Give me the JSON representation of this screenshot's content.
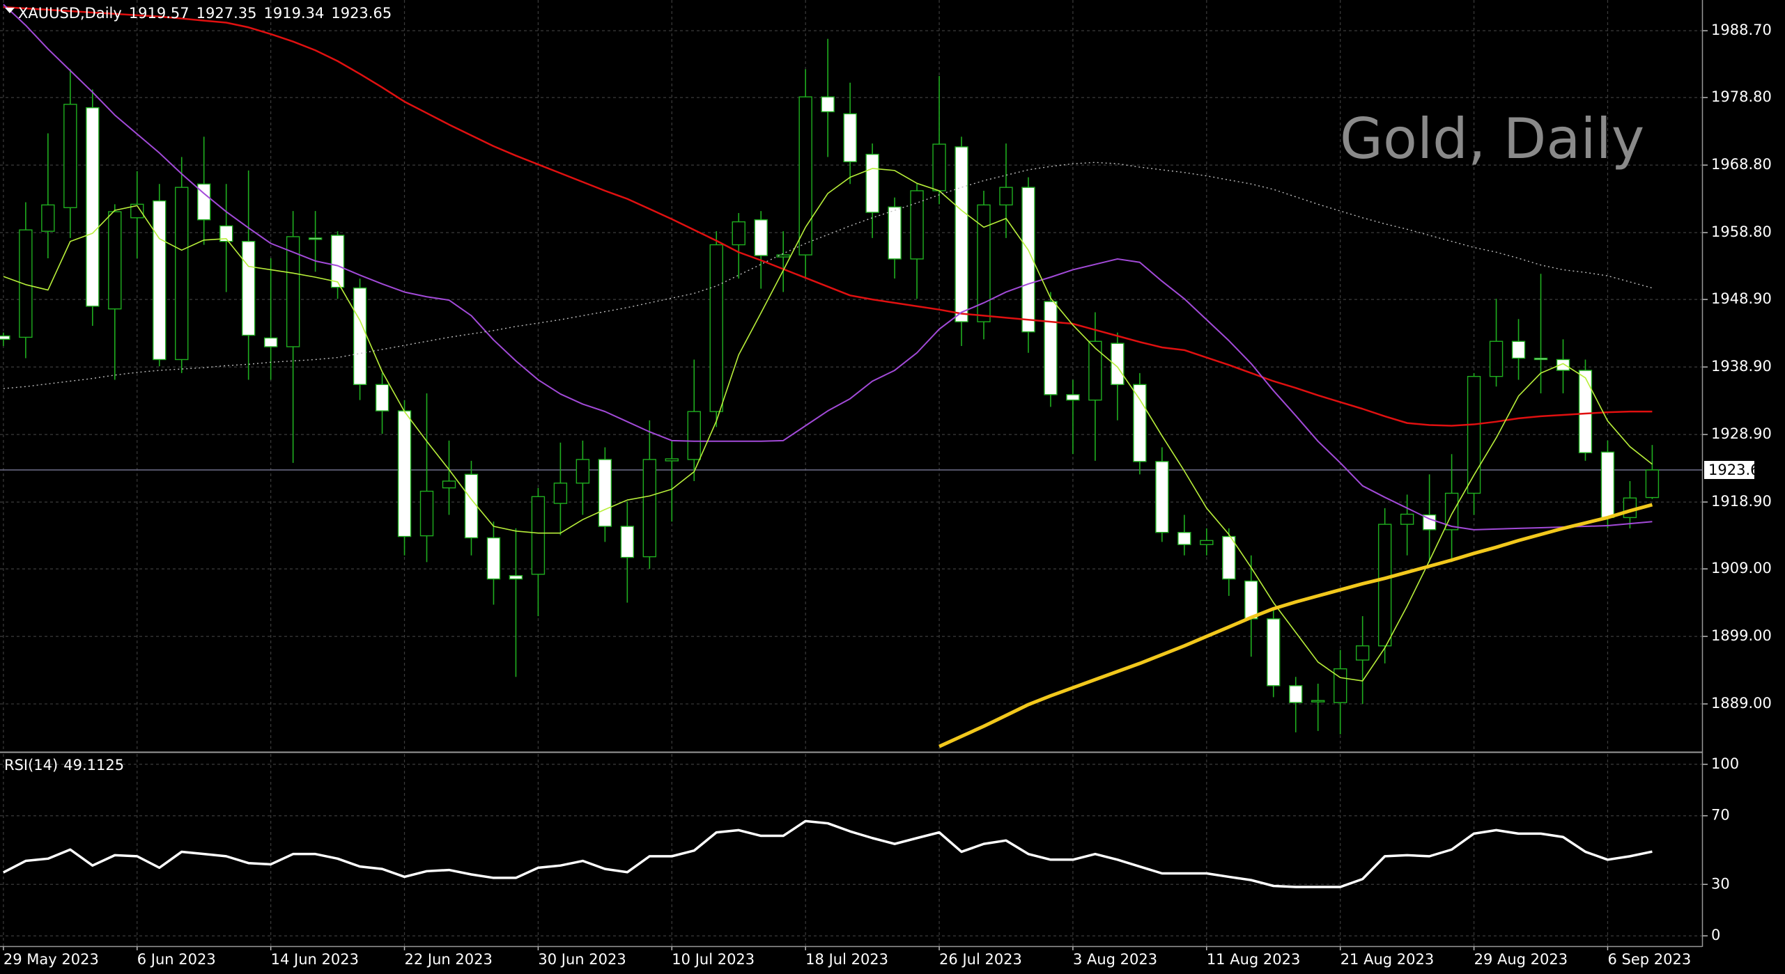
{
  "chart_data": [
    {
      "type": "candlestick",
      "symbol": "XAUUSD,Daily",
      "watermark": "Gold, Daily",
      "categories": [
        "29 May 2023",
        null,
        null,
        null,
        null,
        null,
        "6 Jun 2023",
        null,
        null,
        null,
        null,
        null,
        "14 Jun 2023",
        null,
        null,
        null,
        null,
        null,
        "22 Jun 2023",
        null,
        null,
        null,
        null,
        null,
        "30 Jun 2023",
        null,
        null,
        null,
        null,
        null,
        "10 Jul 2023",
        null,
        null,
        null,
        null,
        null,
        "18 Jul 2023",
        null,
        null,
        null,
        null,
        null,
        "26 Jul 2023",
        null,
        null,
        null,
        null,
        null,
        "3 Aug 2023",
        null,
        null,
        null,
        null,
        null,
        "11 Aug 2023",
        null,
        null,
        null,
        null,
        null,
        "21 Aug 2023",
        null,
        null,
        null,
        null,
        null,
        "29 Aug 2023",
        null,
        null,
        null,
        null,
        null,
        "6 Sep 2023",
        null,
        null
      ],
      "open": [
        1943.5,
        1943.3,
        1959,
        1962.5,
        1977.3,
        1947.5,
        1961,
        1963.5,
        1940,
        1966,
        1959.8,
        1957.5,
        1943.2,
        1941.9,
        1958,
        1958.4,
        1950.6,
        1936.3,
        1932.4,
        1913.9,
        1921,
        1923,
        1913.6,
        1908,
        1908.2,
        1918.7,
        1921.7,
        1925.2,
        1915.3,
        1910.8,
        1925,
        1925.2,
        1932.3,
        1957,
        1960.7,
        1955.2,
        1955.5,
        1978.9,
        1976.4,
        1970.4,
        1962.6,
        1954.9,
        1965,
        1971.5,
        1945.6,
        1962.9,
        1965.5,
        1948.6,
        1934.8,
        1934,
        1942.4,
        1936.3,
        1924.9,
        1914.4,
        1912.6,
        1913.8,
        1907.2,
        1901.6,
        1891.7,
        1889.3,
        1889.2,
        1895.5,
        1897.6,
        1915.6,
        1917,
        1914.8,
        1920.2,
        1937.5,
        1942.7,
        1940.2,
        1940,
        1938.4,
        1926.3,
        1916.6,
        1919.57
      ],
      "high": [
        1944,
        1963.3,
        1973.5,
        1983,
        1980,
        1963,
        1967.9,
        1966,
        1970,
        1973,
        1966,
        1968,
        1955,
        1962,
        1962,
        1959,
        1952,
        1938,
        1934,
        1935,
        1928,
        1925,
        1916,
        1915,
        1921,
        1927.7,
        1928,
        1927,
        1919,
        1931,
        1928,
        1940,
        1959,
        1961.7,
        1962,
        1959,
        1983,
        1987.5,
        1981,
        1972,
        1964,
        1966,
        1982,
        1973,
        1965,
        1972,
        1967,
        1950,
        1937,
        1947,
        1944,
        1938,
        1927,
        1917,
        1915,
        1915,
        1911,
        1903,
        1893,
        1892,
        1897,
        1902,
        1918,
        1920,
        1923,
        1926,
        1938,
        1949,
        1946,
        1952.7,
        1943,
        1940,
        1928,
        1922,
        1927.35
      ],
      "low": [
        1942,
        1940.2,
        1955,
        1958,
        1945,
        1937,
        1955,
        1939,
        1938,
        1957,
        1950,
        1937,
        1937,
        1924.7,
        1953,
        1949,
        1934,
        1929,
        1911,
        1910,
        1917,
        1911,
        1903.7,
        1893,
        1902,
        1914,
        1917,
        1913,
        1904,
        1909,
        1916,
        1922,
        1930,
        1952,
        1950.5,
        1950,
        1952,
        1970,
        1966,
        1958,
        1952,
        1949,
        1963,
        1942,
        1943,
        1958,
        1941,
        1933,
        1926,
        1925,
        1931,
        1923,
        1913,
        1911,
        1911,
        1905,
        1896,
        1890,
        1884.8,
        1885,
        1884.5,
        1889,
        1895,
        1911,
        1910,
        1910,
        1917,
        1936,
        1937,
        1935,
        1935,
        1925,
        1915,
        1915,
        1919.34
      ],
      "close": [
        1943,
        1959.2,
        1962.9,
        1977.8,
        1947.9,
        1961.9,
        1963,
        1940,
        1965.5,
        1960.7,
        1957.5,
        1943.6,
        1941.9,
        1958.2,
        1957.8,
        1950.7,
        1936.3,
        1932.4,
        1913.8,
        1920.5,
        1922,
        1913.6,
        1907.5,
        1907.5,
        1919.7,
        1921.7,
        1925.2,
        1915.3,
        1910.7,
        1925.2,
        1925.3,
        1932.3,
        1957,
        1960.4,
        1955.4,
        1955.5,
        1978.9,
        1976.7,
        1969.3,
        1961.8,
        1954.9,
        1965,
        1971.9,
        1945.6,
        1962.9,
        1965.5,
        1944.1,
        1934.8,
        1934,
        1942.7,
        1936.3,
        1924.9,
        1914.4,
        1912.6,
        1913.2,
        1907.5,
        1901.6,
        1891.7,
        1889.2,
        1889.5,
        1894.2,
        1897.6,
        1915.6,
        1917.1,
        1914.8,
        1920.2,
        1937.5,
        1942.7,
        1940.2,
        1940,
        1938.4,
        1926.2,
        1916.6,
        1919.5,
        1923.65
      ],
      "up_color": "#000000",
      "down_color": "#ffffff",
      "wick_color": "#1fae1f",
      "series": [
        {
          "color": "#e01010",
          "width": 2.5,
          "values": [
            1992.2,
            1992.0,
            1991.8,
            1991.6,
            1991.4,
            1991.2,
            1991.0,
            1990.8,
            1990.5,
            1990.2,
            1989.9,
            1989.2,
            1988.2,
            1987.1,
            1985.8,
            1984.2,
            1982.3,
            1980.3,
            1978.2,
            1976.5,
            1974.8,
            1973.2,
            1971.6,
            1970.2,
            1968.9,
            1967.6,
            1966.3,
            1965.0,
            1963.8,
            1962.3,
            1960.8,
            1959.2,
            1957.6,
            1955.9,
            1954.7,
            1953.4,
            1952.1,
            1950.8,
            1949.5,
            1948.9,
            1948.4,
            1947.9,
            1947.4,
            1946.8,
            1946.5,
            1946.2,
            1945.9,
            1945.6,
            1945.3,
            1944.4,
            1943.5,
            1942.6,
            1941.8,
            1941.4,
            1940.3,
            1939.2,
            1938.0,
            1936.8,
            1935.8,
            1934.7,
            1933.7,
            1932.7,
            1931.6,
            1930.6,
            1930.3,
            1930.2,
            1930.4,
            1930.8,
            1931.3,
            1931.6,
            1931.8,
            1932.0,
            1932.2,
            1932.3,
            1932.3
          ]
        },
        {
          "color": "#a24ad8",
          "width": 2,
          "values": [
            1992.6,
            1989.5,
            1986.0,
            1982.8,
            1979.6,
            1976.2,
            1973.4,
            1970.6,
            1967.5,
            1964.6,
            1961.9,
            1959.5,
            1957.2,
            1955.9,
            1954.6,
            1953.9,
            1952.5,
            1951.2,
            1950.0,
            1949.3,
            1948.8,
            1946.5,
            1942.9,
            1939.8,
            1937.0,
            1934.9,
            1933.4,
            1932.3,
            1930.8,
            1929.3,
            1928.0,
            1927.9,
            1927.9,
            1927.9,
            1927.9,
            1928.0,
            1930.2,
            1932.4,
            1934.2,
            1936.8,
            1938.4,
            1941.0,
            1944.5,
            1947.0,
            1948.4,
            1950.0,
            1951.2,
            1952.2,
            1953.3,
            1954.1,
            1954.9,
            1954.4,
            1951.6,
            1949.0,
            1945.9,
            1942.8,
            1939.4,
            1935.4,
            1931.7,
            1927.9,
            1924.7,
            1921.3,
            1919.6,
            1918.0,
            1916.4,
            1915.3,
            1914.8,
            1914.9,
            1915.0,
            1915.1,
            1915.2,
            1915.3,
            1915.4,
            1915.7,
            1916.0
          ]
        },
        {
          "color": "#b8ef3a",
          "width": 1.6,
          "values": [
            1952.3,
            1951.1,
            1950.3,
            1957.5,
            1958.7,
            1962.1,
            1962.8,
            1957.9,
            1956.2,
            1957.7,
            1957.9,
            1953.8,
            1953.3,
            1952.8,
            1952.2,
            1951.5,
            1945.8,
            1938.2,
            1932.3,
            1927.9,
            1923.7,
            1919.3,
            1915.3,
            1914.6,
            1914.3,
            1914.3,
            1916.3,
            1917.8,
            1919.2,
            1919.8,
            1920.8,
            1923.4,
            1930.9,
            1940.7,
            1946.9,
            1953.2,
            1959.6,
            1964.6,
            1967.0,
            1968.3,
            1968.0,
            1966.1,
            1965.0,
            1962.1,
            1959.6,
            1960.9,
            1956.2,
            1949.1,
            1945.1,
            1941.7,
            1938.9,
            1934.1,
            1928.7,
            1923.5,
            1918.0,
            1914.1,
            1909.2,
            1904.0,
            1899.6,
            1895.2,
            1892.9,
            1892.4,
            1897.3,
            1903.5,
            1910.2,
            1917.1,
            1922.9,
            1928.4,
            1934.6,
            1938.0,
            1939.4,
            1937.3,
            1930.9,
            1927.1,
            1924.5
          ]
        },
        {
          "color": "#bdbdbd",
          "width": 1.4,
          "style": "dotted",
          "values": [
            1935.7,
            1936.0,
            1936.4,
            1936.8,
            1937.2,
            1937.7,
            1938.1,
            1938.4,
            1938.6,
            1938.8,
            1939.1,
            1939.3,
            1939.6,
            1939.8,
            1940.0,
            1940.3,
            1940.9,
            1941.5,
            1942.1,
            1942.7,
            1943.3,
            1943.8,
            1944.3,
            1944.9,
            1945.4,
            1945.9,
            1946.5,
            1947.1,
            1947.7,
            1948.4,
            1949.1,
            1949.8,
            1950.9,
            1952.5,
            1954.1,
            1955.7,
            1957.2,
            1958.5,
            1959.8,
            1961.0,
            1962.1,
            1963.2,
            1964.4,
            1965.5,
            1966.5,
            1967.3,
            1968.1,
            1968.6,
            1969.0,
            1969.2,
            1969.0,
            1968.5,
            1968.1,
            1967.7,
            1967.2,
            1966.6,
            1966.0,
            1965.2,
            1964.1,
            1963.0,
            1962.0,
            1961.0,
            1960.1,
            1959.3,
            1958.4,
            1957.5,
            1956.6,
            1955.9,
            1955.0,
            1954.0,
            1953.3,
            1952.9,
            1952.4,
            1951.5,
            1950.6
          ]
        },
        {
          "color": "#f2c81c",
          "width": 5,
          "values": [
            null,
            null,
            null,
            null,
            null,
            null,
            null,
            null,
            null,
            null,
            null,
            null,
            null,
            null,
            null,
            null,
            null,
            null,
            null,
            null,
            null,
            null,
            null,
            null,
            null,
            null,
            null,
            null,
            null,
            null,
            null,
            null,
            null,
            null,
            null,
            null,
            null,
            null,
            null,
            null,
            null,
            null,
            1882.7,
            1884.2,
            1885.7,
            1887.3,
            1888.9,
            1890.2,
            1891.4,
            1892.6,
            1893.8,
            1895.0,
            1896.3,
            1897.6,
            1899.0,
            1900.4,
            1901.8,
            1903.1,
            1904.1,
            1905.0,
            1905.9,
            1906.8,
            1907.6,
            1908.5,
            1909.4,
            1910.3,
            1911.3,
            1912.2,
            1913.2,
            1914.1,
            1915.0,
            1915.8,
            1916.6,
            1917.6,
            1918.5
          ]
        }
      ],
      "ylim": [
        1882.1,
        1993.25
      ],
      "yticks": [
        {
          "value": 1889,
          "label": "1889.00"
        },
        {
          "value": 1899,
          "label": "1899.00"
        },
        {
          "value": 1909,
          "label": "1909.00"
        },
        {
          "value": 1918.9,
          "label": "1918.90"
        },
        {
          "value": 1928.9,
          "label": "1928.90"
        },
        {
          "value": 1938.9,
          "label": "1938.90"
        },
        {
          "value": 1948.9,
          "label": "1948.90"
        },
        {
          "value": 1958.8,
          "label": "1958.80"
        },
        {
          "value": 1968.8,
          "label": "1968.80"
        },
        {
          "value": 1978.8,
          "label": "1978.80"
        },
        {
          "value": 1988.7,
          "label": "1988.70"
        }
      ],
      "grid": true,
      "price_line": true
    },
    {
      "type": "line",
      "title": "RSI(14)",
      "color": "#ffffff",
      "values": [
        37,
        43.7,
        45,
        50.3,
        41,
        47,
        46.4,
        39.7,
        49,
        47.7,
        46.4,
        42.4,
        41.7,
        47.7,
        47.7,
        45,
        40.4,
        39,
        34.4,
        37.7,
        38.4,
        35.8,
        33.8,
        33.8,
        39.7,
        41,
        43.7,
        39,
        37.1,
        46.4,
        46.4,
        49.7,
        60.3,
        61.6,
        58.3,
        58.3,
        66.9,
        65.6,
        60.9,
        57,
        53.6,
        57,
        60.3,
        49,
        53.6,
        55.6,
        47.7,
        44.4,
        44.4,
        47.7,
        44.4,
        40.4,
        36.4,
        36.4,
        36.4,
        34.4,
        32.5,
        29.1,
        28.5,
        28.5,
        28.5,
        33.1,
        46.4,
        47,
        46.4,
        50.3,
        59.6,
        61.6,
        59.6,
        59.6,
        57.6,
        49,
        44.4,
        46.4,
        49.1125
      ],
      "ylim": [
        -6,
        106
      ],
      "yticks": [
        100,
        70,
        30,
        0
      ],
      "grid": true
    }
  ]
}
